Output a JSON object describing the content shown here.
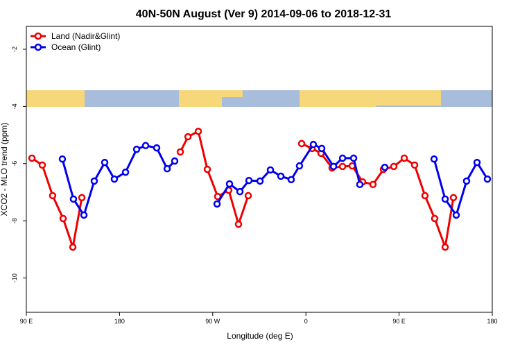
{
  "chart_data": {
    "type": "line",
    "title": "40N-50N August (Ver 9)   2014-09-06 to 2018-12-31",
    "x_label": "Longitude (deg E)",
    "y_label": "XCO2 - MLO trend (ppm)",
    "xlim": [
      90,
      540
    ],
    "ylim": [
      -11.2,
      -1.2
    ],
    "xticks": [
      {
        "value": 90,
        "label": "90 E"
      },
      180,
      {
        "value": 270,
        "label": "90 W"
      },
      {
        "value": 360,
        "label": "0"
      },
      {
        "value": 450,
        "label": "90 E"
      },
      {
        "value": 540,
        "label": "180"
      }
    ],
    "yticks": [
      -2,
      -4,
      -6,
      -8,
      -10
    ],
    "legend": "top-left",
    "series": [
      {
        "name": "Land (Nadir&Glint)",
        "color": "#ee0000",
        "x": [
          95.4,
          105.4,
          115.4,
          125.5,
          134.9,
          143.6,
          null,
          238.7,
          246.1,
          256.1,
          264.8,
          274.8,
          285.5,
          294.9,
          304.3,
          null,
          355.9,
          366,
          374.6,
          385.3,
          395.4,
          404.7,
          414.8,
          424.8,
          434.9,
          444.9,
          455,
          465,
          475,
          484.4,
          494.5,
          502.5
        ],
        "values": [
          -5.81,
          -6.05,
          -7.12,
          -7.92,
          -8.92,
          -7.19,
          null,
          -5.59,
          -5.06,
          -4.87,
          -6.2,
          -7.15,
          -6.93,
          -8.12,
          -7.12,
          null,
          -5.3,
          -5.47,
          -5.64,
          -6.15,
          -6.1,
          -6.08,
          -6.64,
          -6.73,
          -6.2,
          -6.1,
          -5.81,
          -6.05,
          -7.12,
          -7.92,
          -8.92,
          -7.19
        ]
      },
      {
        "name": "Ocean (Glint)",
        "color": "#0000ee",
        "x": [
          124.8,
          135.5,
          145.6,
          155.6,
          165.7,
          175,
          185.8,
          196.5,
          205.2,
          215.9,
          226,
          233.3,
          null,
          274.2,
          286.2,
          296.3,
          305,
          315.7,
          325.7,
          335.8,
          345.8,
          353.8,
          367.2,
          375.3,
          386.7,
          395.4,
          406.1,
          412.1,
          null,
          436.2,
          null,
          483.8,
          494.5,
          505.2,
          515.2,
          525.3,
          535.3
        ],
        "values": [
          -5.84,
          -7.24,
          -7.8,
          -6.61,
          -5.96,
          -6.54,
          -6.3,
          -5.5,
          -5.37,
          -5.45,
          -6.18,
          -5.91,
          null,
          -7.41,
          -6.71,
          -6.98,
          -6.59,
          -6.61,
          -6.22,
          -6.44,
          -6.56,
          -6.08,
          -5.33,
          -5.47,
          -6.1,
          -5.81,
          -5.81,
          -6.73,
          null,
          -6.13,
          null,
          -5.84,
          -7.24,
          -7.8,
          -6.61,
          -5.96,
          -6.54
        ]
      }
    ]
  }
}
